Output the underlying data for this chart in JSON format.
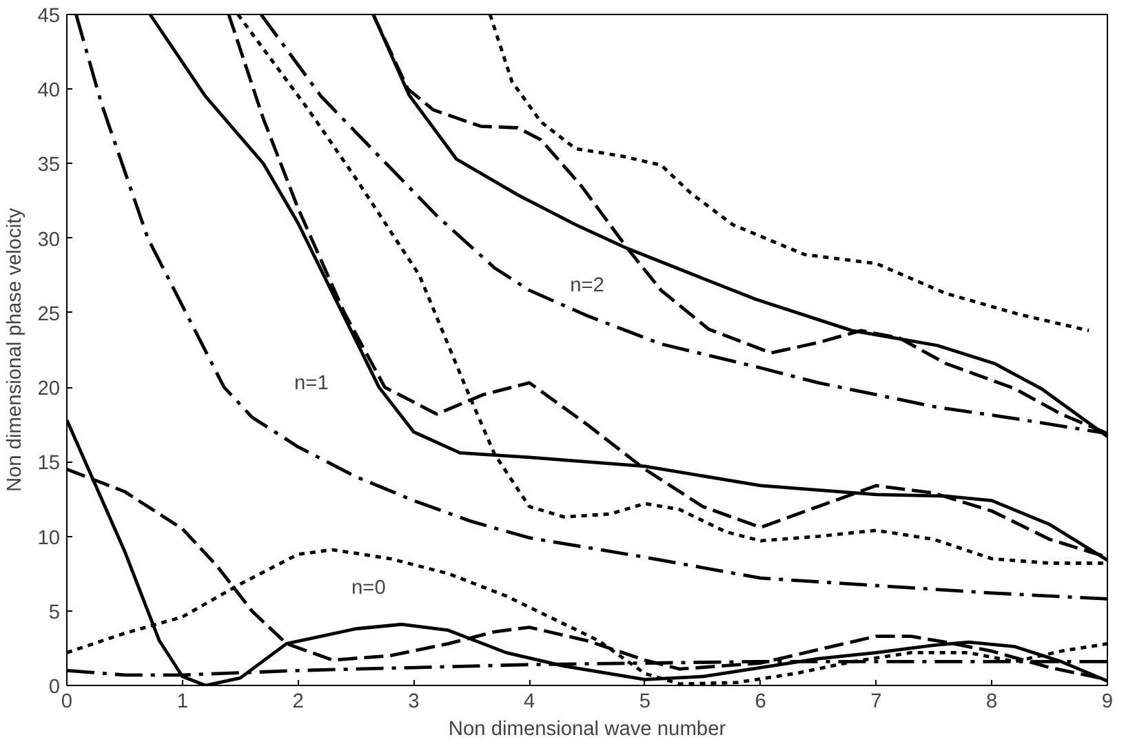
{
  "chart_data": {
    "type": "line",
    "xlabel": "Non dimensional wave number",
    "ylabel": "Non dimensional phase velocity",
    "xlim": [
      0,
      9
    ],
    "ylim": [
      0,
      45
    ],
    "xticks": [
      0,
      1,
      2,
      3,
      4,
      5,
      6,
      7,
      8,
      9
    ],
    "yticks": [
      0,
      5,
      10,
      15,
      20,
      25,
      30,
      35,
      40,
      45
    ],
    "grid": false,
    "marker": "none",
    "annotations": [
      "n=0",
      "n=1",
      "n=2"
    ],
    "series": [
      {
        "color": "#000000",
        "line_style": "solid",
        "x": [
          0,
          0.5,
          0.8,
          1,
          1.2,
          1.5,
          1.9,
          2.5,
          2.9,
          3.3,
          3.8,
          4.3,
          5,
          5.5,
          6,
          6.5,
          7,
          7.5,
          7.8,
          8.2,
          8.6,
          9
        ],
        "values": [
          17.8,
          9,
          3,
          0.6,
          0,
          0.5,
          2.8,
          3.8,
          4.1,
          3.7,
          2.2,
          1.3,
          0.4,
          0.6,
          1.2,
          1.8,
          2.2,
          2.7,
          2.9,
          2.6,
          1.6,
          0.3
        ]
      },
      {
        "color": "#000000",
        "line_style": "dashed",
        "x": [
          0,
          0.5,
          1,
          1.3,
          1.6,
          1.9,
          2.3,
          2.8,
          3.3,
          3.7,
          4,
          4.5,
          5,
          5.3,
          6,
          6.5,
          7,
          7.3,
          7.6,
          8,
          8.5,
          9
        ],
        "values": [
          14.5,
          13,
          10.5,
          8,
          5,
          2.8,
          1.7,
          2,
          2.8,
          3.6,
          3.9,
          3,
          1.7,
          1.1,
          1.5,
          2.4,
          3.3,
          3.3,
          2.9,
          2.3,
          1.2,
          0.4
        ]
      },
      {
        "color": "#000000",
        "line_style": "dashdot",
        "x": [
          0,
          0.5,
          1,
          2,
          3,
          4,
          5,
          6,
          7,
          8,
          9
        ],
        "values": [
          1,
          0.7,
          0.7,
          1,
          1.2,
          1.4,
          1.5,
          1.6,
          1.6,
          1.6,
          1.6
        ]
      },
      {
        "color": "#000000",
        "line_style": "dotted",
        "x": [
          0,
          0.5,
          1,
          1.5,
          2,
          2.3,
          2.8,
          3.3,
          3.8,
          4.2,
          4.6,
          5,
          5.3,
          5.8,
          6.3,
          6.8,
          7.3,
          7.8,
          8.2,
          8.6,
          9
        ],
        "values": [
          2.2,
          3.5,
          4.6,
          6.8,
          8.8,
          9.1,
          8.5,
          7.5,
          6,
          4.5,
          3,
          0.8,
          0.1,
          0.2,
          0.8,
          1.6,
          2.2,
          2.2,
          1.6,
          2.3,
          2.8
        ]
      },
      {
        "color": "#000000",
        "line_style": "solid",
        "x": [
          0.72,
          1.2,
          1.7,
          2,
          2.35,
          2.7,
          3,
          3.4,
          4,
          5,
          6,
          7,
          7.6,
          8,
          8.5,
          9
        ],
        "values": [
          45,
          39.5,
          35,
          31,
          25.5,
          20,
          17,
          15.6,
          15.3,
          14.7,
          13.4,
          12.8,
          12.7,
          12.4,
          10.8,
          8.4
        ]
      },
      {
        "color": "#000000",
        "line_style": "dashed",
        "x": [
          1.4,
          1.7,
          2,
          2.4,
          2.75,
          3.2,
          3.6,
          4,
          4.5,
          5,
          5.5,
          6,
          6.5,
          7,
          7.5,
          8,
          8.5,
          9
        ],
        "values": [
          45,
          38,
          32,
          25,
          20,
          18.2,
          19.5,
          20.3,
          17.5,
          14.5,
          12,
          10.6,
          12,
          13.4,
          12.9,
          11.7,
          9.8,
          8.6
        ]
      },
      {
        "color": "#000000",
        "line_style": "dashdot",
        "x": [
          0.08,
          0.3,
          0.7,
          1.03,
          1.36,
          1.6,
          2,
          2.5,
          3,
          3.5,
          4,
          5,
          6,
          7,
          8,
          9
        ],
        "values": [
          45,
          39,
          30,
          25,
          20,
          18,
          16,
          14,
          12.4,
          11,
          9.9,
          8.6,
          7.2,
          6.7,
          6.2,
          5.8
        ]
      },
      {
        "color": "#000000",
        "line_style": "dotted",
        "x": [
          1.48,
          2.1,
          2.5,
          3.05,
          3.45,
          3.7,
          4,
          4.3,
          4.7,
          5,
          5.3,
          5.7,
          6,
          6.5,
          7,
          7.5,
          8,
          8.5,
          9
        ],
        "values": [
          45,
          38.5,
          34,
          27.5,
          20,
          15.5,
          12,
          11.3,
          11.5,
          12.2,
          11.8,
          10.3,
          9.7,
          10,
          10.4,
          9.8,
          8.5,
          8.2,
          8.2
        ]
      },
      {
        "color": "#000000",
        "line_style": "solid",
        "x": [
          2.65,
          2.96,
          3.37,
          3.9,
          4.4,
          4.85,
          5.5,
          5.96,
          6.79,
          7.53,
          8.02,
          8.43,
          9
        ],
        "values": [
          45,
          39.6,
          35.3,
          32.9,
          30.9,
          29.3,
          27.3,
          25.9,
          23.8,
          22.8,
          21.6,
          19.9,
          16.7
        ]
      },
      {
        "color": "#000000",
        "line_style": "dashed",
        "x": [
          2.65,
          2.95,
          3.17,
          3.58,
          3.9,
          4.1,
          4.45,
          4.85,
          5.14,
          5.55,
          6.09,
          6.5,
          6.87,
          7.2,
          7.6,
          8.2,
          8.6,
          9
        ],
        "values": [
          45,
          40,
          38.6,
          37.5,
          37.4,
          36.6,
          33.5,
          29.3,
          26.5,
          23.9,
          22.3,
          23,
          23.8,
          23.3,
          21.6,
          19.9,
          18.2,
          16.9
        ]
      },
      {
        "color": "#000000",
        "line_style": "dashdot",
        "x": [
          1.68,
          2.2,
          2.7,
          3.2,
          3.7,
          4,
          4.5,
          5.14,
          6,
          6.5,
          7,
          7.5,
          8.2,
          9
        ],
        "values": [
          45,
          39.5,
          35.5,
          31.5,
          28,
          26.5,
          24.8,
          22.9,
          21.3,
          20.3,
          19.5,
          18.7,
          17.9,
          16.9
        ]
      },
      {
        "color": "#000000",
        "line_style": "dotted",
        "x": [
          3.66,
          3.85,
          4.1,
          4.4,
          4.8,
          5.14,
          5.4,
          5.76,
          6.38,
          7,
          7.6,
          8.23,
          8.84
        ],
        "values": [
          45,
          40.5,
          37.8,
          36,
          35.5,
          34.9,
          33,
          30.9,
          28.9,
          28.3,
          26.3,
          24.9,
          23.8
        ]
      }
    ]
  }
}
